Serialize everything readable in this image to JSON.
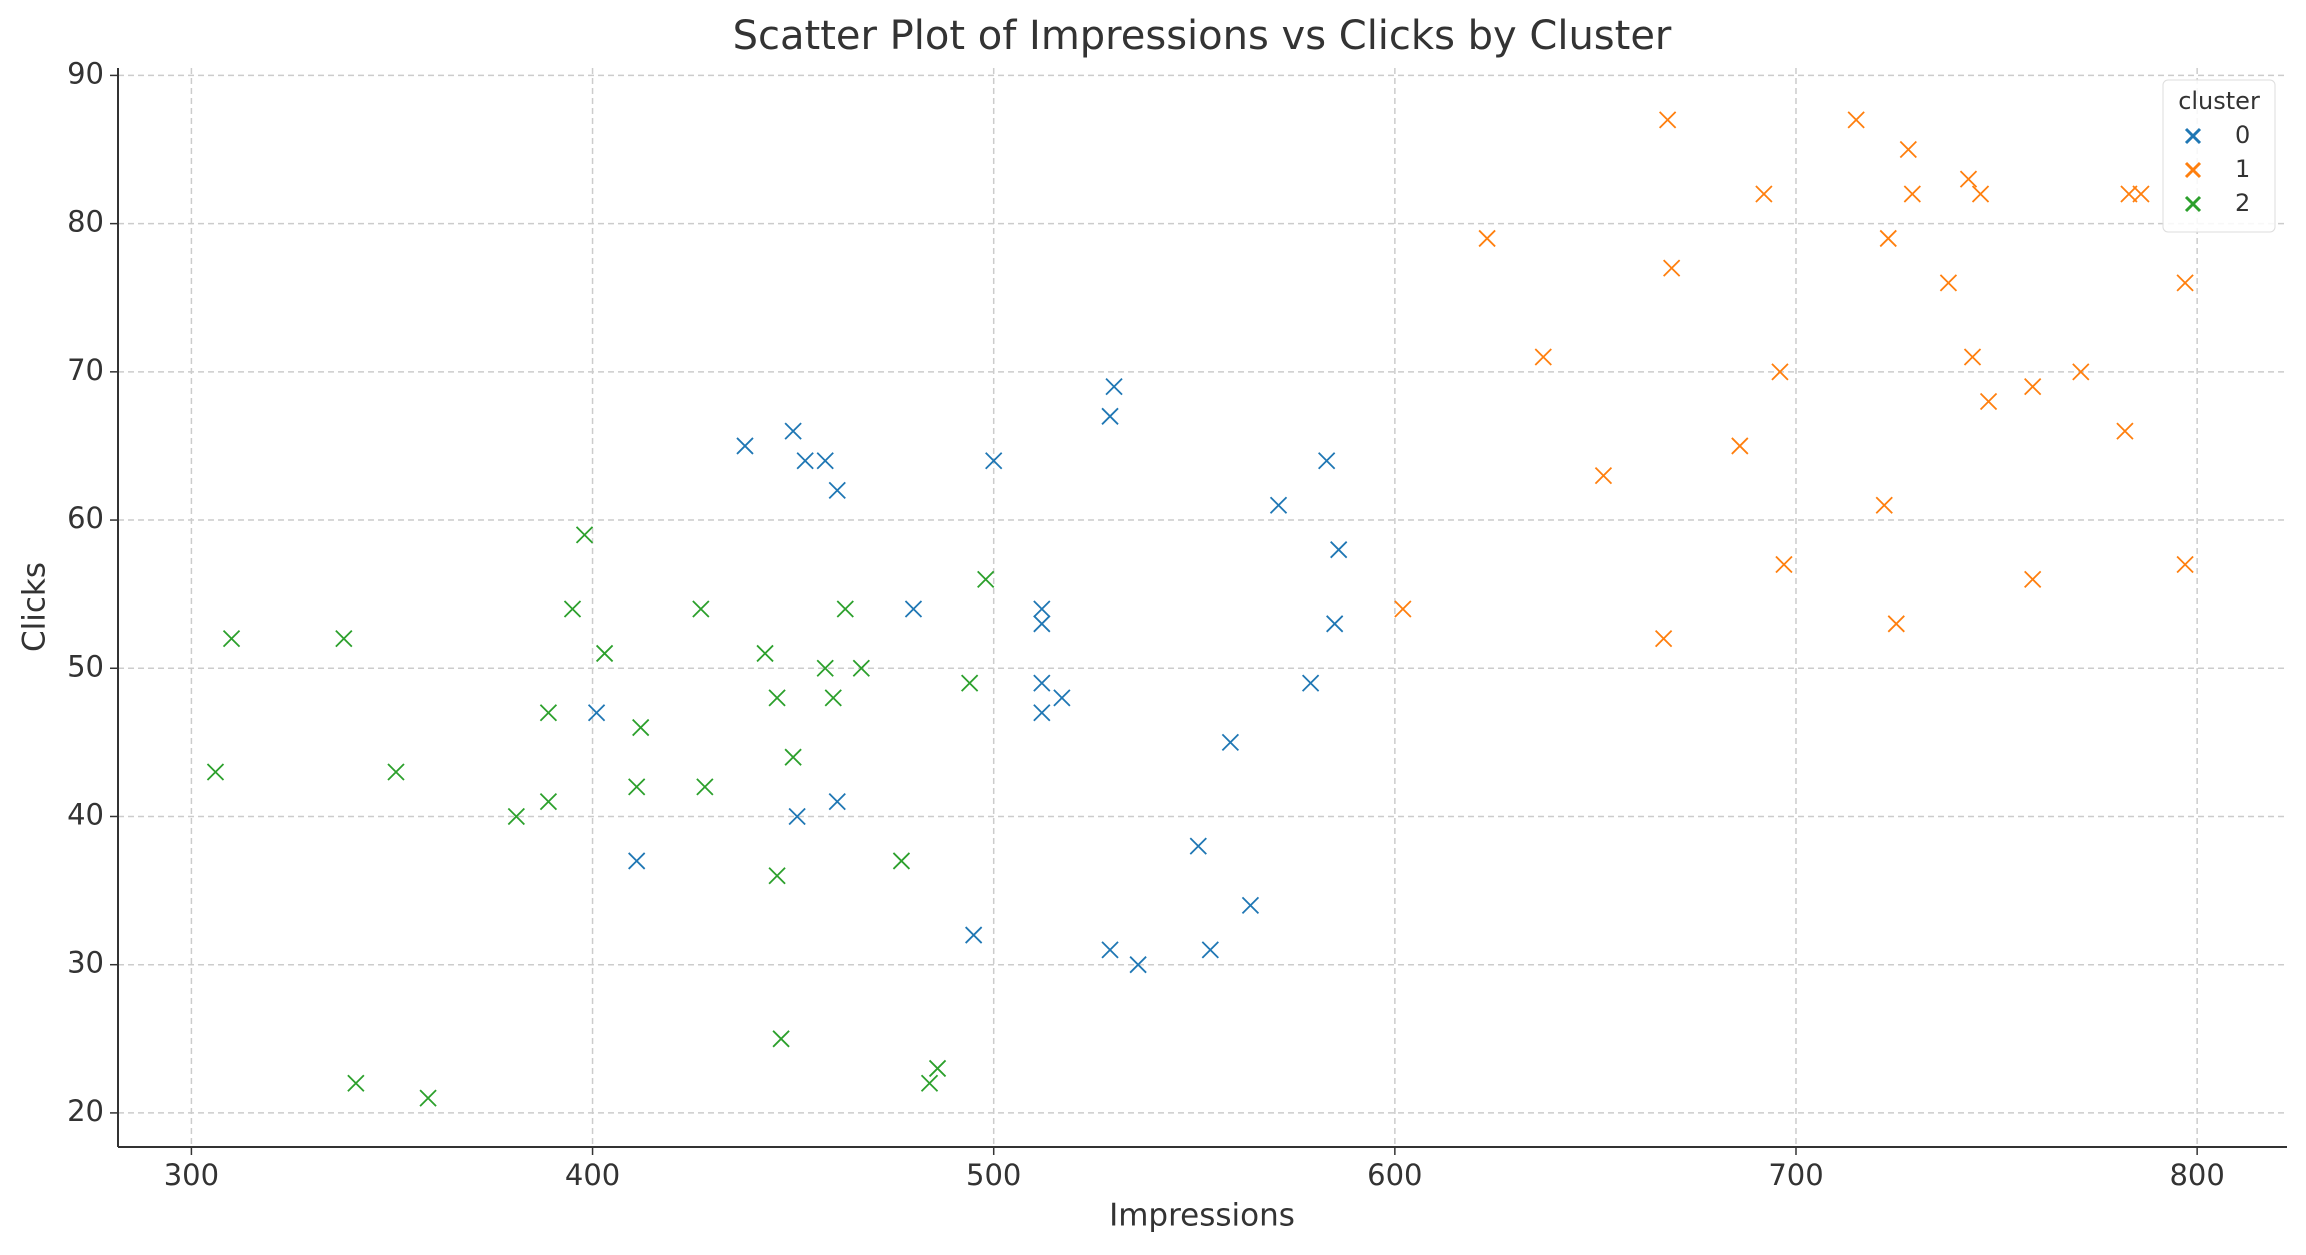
{
  "chart_data": {
    "type": "scatter",
    "title": "Scatter Plot of Impressions vs Clicks by Cluster",
    "x_label": "Impressions",
    "y_label": "Clicks",
    "legend_title": "cluster",
    "legend_position": "upper-right",
    "grid": true,
    "marker": "x",
    "xlim": [
      281.7,
      822.4
    ],
    "ylim": [
      17.7,
      90.5
    ],
    "xticks": [
      300,
      400,
      500,
      600,
      700,
      800
    ],
    "yticks": [
      20,
      30,
      40,
      50,
      60,
      70,
      80,
      90
    ],
    "series": [
      {
        "name": "0",
        "color": "#1f77b4",
        "x": [
          438,
          450,
          453,
          458,
          461,
          500,
          530,
          529,
          571,
          583,
          586,
          585,
          579,
          559,
          551,
          564,
          554,
          536,
          529,
          495,
          512,
          512,
          512,
          512,
          517,
          480,
          451,
          461,
          401,
          411
        ],
        "values": [
          65,
          66,
          64,
          64,
          62,
          64,
          69,
          67,
          61,
          64,
          58,
          53,
          49,
          45,
          38,
          34,
          31,
          30,
          31,
          32,
          54,
          53,
          49,
          47,
          48,
          54,
          40,
          41,
          47,
          37
        ]
      },
      {
        "name": "1",
        "color": "#ff7f0e",
        "x": [
          668,
          715,
          728,
          692,
          729,
          743,
          746,
          783,
          786,
          623,
          669,
          723,
          738,
          797,
          637,
          696,
          744,
          771,
          759,
          748,
          686,
          652,
          782,
          722,
          697,
          797,
          759,
          602,
          725,
          667
        ],
        "values": [
          87,
          87,
          85,
          82,
          82,
          83,
          82,
          82,
          82,
          79,
          77,
          79,
          76,
          76,
          71,
          70,
          71,
          70,
          69,
          68,
          65,
          63,
          66,
          61,
          57,
          57,
          56,
          54,
          53,
          52
        ]
      },
      {
        "name": "2",
        "color": "#2ca02c",
        "x": [
          310,
          338,
          306,
          351,
          341,
          359,
          381,
          389,
          389,
          395,
          398,
          403,
          411,
          412,
          427,
          428,
          443,
          446,
          446,
          447,
          450,
          458,
          460,
          463,
          467,
          477,
          494,
          498,
          486,
          484
        ],
        "values": [
          52,
          52,
          43,
          43,
          22,
          21,
          40,
          41,
          47,
          54,
          59,
          51,
          42,
          46,
          54,
          42,
          51,
          48,
          36,
          25,
          44,
          50,
          48,
          54,
          50,
          37,
          49,
          56,
          23,
          22
        ]
      }
    ]
  }
}
